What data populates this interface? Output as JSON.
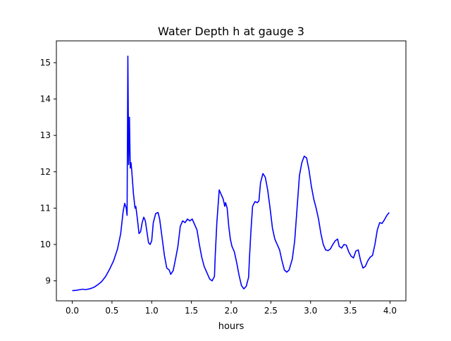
{
  "chart_data": {
    "type": "line",
    "title": "Water Depth h at gauge 3",
    "xlabel": "hours",
    "ylabel": "",
    "xlim": [
      -0.2,
      4.2
    ],
    "ylim": [
      8.45,
      15.6
    ],
    "xticks": [
      0.0,
      0.5,
      1.0,
      1.5,
      2.0,
      2.5,
      3.0,
      3.5,
      4.0
    ],
    "xtick_labels": [
      "0.0",
      "0.5",
      "1.0",
      "1.5",
      "2.0",
      "2.5",
      "3.0",
      "3.5",
      "4.0"
    ],
    "yticks": [
      9,
      10,
      11,
      12,
      13,
      14,
      15
    ],
    "ytick_labels": [
      "9",
      "10",
      "11",
      "12",
      "13",
      "14",
      "15"
    ],
    "grid": false,
    "legend": "none",
    "series": [
      {
        "color": "#0000ff",
        "points": [
          [
            0.0,
            8.73
          ],
          [
            0.05,
            8.74
          ],
          [
            0.1,
            8.76
          ],
          [
            0.13,
            8.77
          ],
          [
            0.17,
            8.76
          ],
          [
            0.22,
            8.78
          ],
          [
            0.27,
            8.82
          ],
          [
            0.32,
            8.89
          ],
          [
            0.37,
            8.98
          ],
          [
            0.42,
            9.12
          ],
          [
            0.47,
            9.32
          ],
          [
            0.52,
            9.55
          ],
          [
            0.57,
            9.88
          ],
          [
            0.61,
            10.3
          ],
          [
            0.64,
            10.9
          ],
          [
            0.66,
            11.13
          ],
          [
            0.68,
            11.0
          ],
          [
            0.69,
            10.8
          ],
          [
            0.7,
            15.18
          ],
          [
            0.71,
            12.2
          ],
          [
            0.72,
            13.5
          ],
          [
            0.73,
            12.1
          ],
          [
            0.74,
            12.25
          ],
          [
            0.75,
            12.0
          ],
          [
            0.77,
            11.4
          ],
          [
            0.79,
            11.0
          ],
          [
            0.8,
            11.05
          ],
          [
            0.82,
            10.7
          ],
          [
            0.84,
            10.3
          ],
          [
            0.86,
            10.35
          ],
          [
            0.88,
            10.6
          ],
          [
            0.9,
            10.75
          ],
          [
            0.92,
            10.65
          ],
          [
            0.94,
            10.35
          ],
          [
            0.96,
            10.05
          ],
          [
            0.98,
            10.0
          ],
          [
            1.0,
            10.1
          ],
          [
            1.02,
            10.6
          ],
          [
            1.05,
            10.85
          ],
          [
            1.08,
            10.88
          ],
          [
            1.1,
            10.7
          ],
          [
            1.13,
            10.2
          ],
          [
            1.16,
            9.7
          ],
          [
            1.19,
            9.35
          ],
          [
            1.22,
            9.3
          ],
          [
            1.24,
            9.18
          ],
          [
            1.27,
            9.28
          ],
          [
            1.3,
            9.6
          ],
          [
            1.33,
            9.95
          ],
          [
            1.36,
            10.5
          ],
          [
            1.39,
            10.65
          ],
          [
            1.42,
            10.6
          ],
          [
            1.45,
            10.7
          ],
          [
            1.48,
            10.65
          ],
          [
            1.51,
            10.7
          ],
          [
            1.54,
            10.55
          ],
          [
            1.57,
            10.4
          ],
          [
            1.6,
            10.0
          ],
          [
            1.63,
            9.65
          ],
          [
            1.66,
            9.4
          ],
          [
            1.7,
            9.2
          ],
          [
            1.73,
            9.05
          ],
          [
            1.76,
            9.0
          ],
          [
            1.79,
            9.12
          ],
          [
            1.8,
            9.7
          ],
          [
            1.82,
            10.6
          ],
          [
            1.84,
            11.2
          ],
          [
            1.85,
            11.5
          ],
          [
            1.87,
            11.4
          ],
          [
            1.9,
            11.25
          ],
          [
            1.92,
            11.05
          ],
          [
            1.93,
            11.15
          ],
          [
            1.95,
            11.0
          ],
          [
            1.97,
            10.5
          ],
          [
            1.99,
            10.15
          ],
          [
            2.01,
            9.95
          ],
          [
            2.04,
            9.8
          ],
          [
            2.07,
            9.5
          ],
          [
            2.1,
            9.15
          ],
          [
            2.13,
            8.87
          ],
          [
            2.16,
            8.78
          ],
          [
            2.19,
            8.85
          ],
          [
            2.22,
            9.1
          ],
          [
            2.23,
            9.6
          ],
          [
            2.25,
            10.4
          ],
          [
            2.27,
            11.05
          ],
          [
            2.3,
            11.18
          ],
          [
            2.33,
            11.15
          ],
          [
            2.35,
            11.2
          ],
          [
            2.37,
            11.7
          ],
          [
            2.4,
            11.95
          ],
          [
            2.43,
            11.85
          ],
          [
            2.46,
            11.5
          ],
          [
            2.49,
            11.0
          ],
          [
            2.52,
            10.45
          ],
          [
            2.55,
            10.15
          ],
          [
            2.58,
            10.0
          ],
          [
            2.61,
            9.85
          ],
          [
            2.64,
            9.55
          ],
          [
            2.67,
            9.3
          ],
          [
            2.7,
            9.24
          ],
          [
            2.73,
            9.3
          ],
          [
            2.77,
            9.6
          ],
          [
            2.8,
            10.1
          ],
          [
            2.83,
            11.0
          ],
          [
            2.86,
            11.9
          ],
          [
            2.89,
            12.25
          ],
          [
            2.92,
            12.43
          ],
          [
            2.95,
            12.38
          ],
          [
            2.98,
            12.05
          ],
          [
            3.01,
            11.6
          ],
          [
            3.04,
            11.25
          ],
          [
            3.07,
            11.0
          ],
          [
            3.1,
            10.7
          ],
          [
            3.13,
            10.3
          ],
          [
            3.16,
            10.0
          ],
          [
            3.19,
            9.85
          ],
          [
            3.22,
            9.83
          ],
          [
            3.25,
            9.88
          ],
          [
            3.28,
            10.0
          ],
          [
            3.31,
            10.1
          ],
          [
            3.34,
            10.15
          ],
          [
            3.36,
            9.95
          ],
          [
            3.39,
            9.9
          ],
          [
            3.42,
            10.0
          ],
          [
            3.45,
            9.98
          ],
          [
            3.48,
            9.8
          ],
          [
            3.51,
            9.68
          ],
          [
            3.54,
            9.63
          ],
          [
            3.57,
            9.82
          ],
          [
            3.6,
            9.85
          ],
          [
            3.63,
            9.55
          ],
          [
            3.66,
            9.35
          ],
          [
            3.69,
            9.4
          ],
          [
            3.72,
            9.55
          ],
          [
            3.75,
            9.65
          ],
          [
            3.78,
            9.7
          ],
          [
            3.81,
            10.0
          ],
          [
            3.84,
            10.4
          ],
          [
            3.87,
            10.6
          ],
          [
            3.9,
            10.58
          ],
          [
            3.93,
            10.68
          ],
          [
            3.96,
            10.8
          ],
          [
            3.99,
            10.88
          ]
        ]
      }
    ]
  }
}
